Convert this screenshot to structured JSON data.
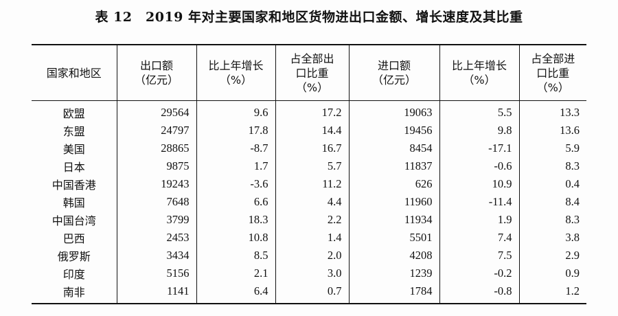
{
  "title": "表 12　2019 年对主要国家和地区货物进出口金额、增长速度及其比重",
  "headers": [
    "国家和地区",
    "出口额\n（亿元）",
    "比上年增长\n（%）",
    "占全部出\n口比重\n（%）",
    "进口额\n（亿元）",
    "比上年增长\n（%）",
    "占全部进\n口比重\n（%）"
  ],
  "rows": [
    [
      "欧盟",
      "29564",
      "9.6",
      "17.2",
      "19063",
      "5.5",
      "13.3"
    ],
    [
      "东盟",
      "24797",
      "17.8",
      "14.4",
      "19456",
      "9.8",
      "13.6"
    ],
    [
      "美国",
      "28865",
      "-8.7",
      "16.7",
      "8454",
      "-17.1",
      "5.9"
    ],
    [
      "日本",
      "9875",
      "1.7",
      "5.7",
      "11837",
      "-0.6",
      "8.3"
    ],
    [
      "中国香港",
      "19243",
      "-3.6",
      "11.2",
      "626",
      "10.9",
      "0.4"
    ],
    [
      "韩国",
      "7648",
      "6.6",
      "4.4",
      "11960",
      "-11.4",
      "8.4"
    ],
    [
      "中国台湾",
      "3799",
      "18.3",
      "2.2",
      "11934",
      "1.9",
      "8.3"
    ],
    [
      "巴西",
      "2453",
      "10.8",
      "1.4",
      "5501",
      "7.4",
      "3.8"
    ],
    [
      "俄罗斯",
      "3434",
      "8.5",
      "2.0",
      "4208",
      "7.5",
      "2.9"
    ],
    [
      "印度",
      "5156",
      "2.1",
      "3.0",
      "1239",
      "-0.2",
      "0.9"
    ],
    [
      "南非",
      "1141",
      "6.4",
      "0.7",
      "1784",
      "-0.8",
      "1.2"
    ]
  ]
}
